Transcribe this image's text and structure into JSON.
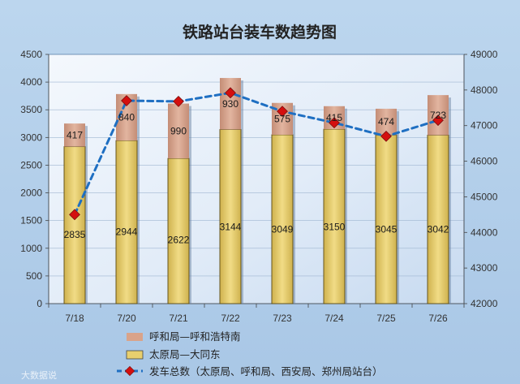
{
  "chart_data": {
    "type": "bar",
    "stacked": true,
    "title": "铁路站台装车数趋势图",
    "categories": [
      "7/18",
      "7/20",
      "7/21",
      "7/22",
      "7/23",
      "7/24",
      "7/25",
      "7/26"
    ],
    "series": [
      {
        "name": "太原局—大同东",
        "type": "bar",
        "axis": "left",
        "color": "#e8cf6e",
        "values": [
          2835,
          2944,
          2622,
          3144,
          3049,
          3150,
          3045,
          3042
        ]
      },
      {
        "name": "呼和局—呼和浩特南",
        "type": "bar",
        "axis": "left",
        "color": "#d9a38a",
        "values": [
          417,
          840,
          990,
          930,
          575,
          415,
          474,
          723
        ]
      },
      {
        "name": "发车总数（太原局、呼和局、西安局、郑州局站台）",
        "type": "line",
        "axis": "right",
        "color": "#1f6fc2",
        "values": [
          44500,
          47700,
          47680,
          47920,
          47400,
          47080,
          46700,
          47150
        ]
      }
    ],
    "y_left": {
      "min": 0,
      "max": 4500,
      "step": 500
    },
    "y_right": {
      "min": 42000,
      "max": 49000,
      "step": 1000
    },
    "grid": true,
    "legend_position": "bottom-center",
    "watermark": "大数据说"
  }
}
